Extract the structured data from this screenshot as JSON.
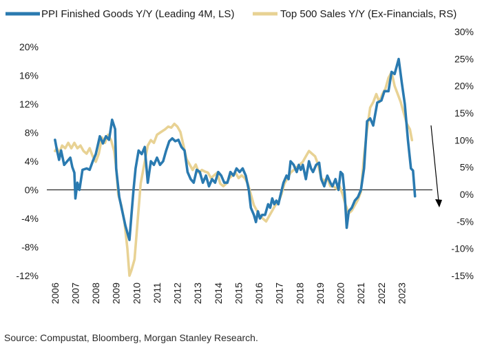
{
  "chart_data": {
    "type": "line",
    "title": "",
    "series": [
      {
        "name": "PPI Finished Goods Y/Y (Leading 4M, LS)",
        "axis": "left",
        "color": "#2a7ab0",
        "points": [
          [
            2006.0,
            7.0
          ],
          [
            2006.1,
            5.5
          ],
          [
            2006.2,
            4.2
          ],
          [
            2006.3,
            5.5
          ],
          [
            2006.45,
            3.5
          ],
          [
            2006.6,
            4.0
          ],
          [
            2006.75,
            4.5
          ],
          [
            2006.85,
            3.2
          ],
          [
            2006.95,
            2.4
          ],
          [
            2007.0,
            -1.2
          ],
          [
            2007.1,
            1.0
          ],
          [
            2007.2,
            0.0
          ],
          [
            2007.35,
            2.8
          ],
          [
            2007.55,
            3.0
          ],
          [
            2007.7,
            2.8
          ],
          [
            2007.85,
            4.0
          ],
          [
            2008.0,
            5.0
          ],
          [
            2008.2,
            7.5
          ],
          [
            2008.35,
            6.5
          ],
          [
            2008.5,
            7.5
          ],
          [
            2008.65,
            7.0
          ],
          [
            2008.8,
            9.8
          ],
          [
            2008.95,
            8.5
          ],
          [
            2009.0,
            3.0
          ],
          [
            2009.15,
            -1.0
          ],
          [
            2009.3,
            -3.0
          ],
          [
            2009.45,
            -5.0
          ],
          [
            2009.55,
            -6.0
          ],
          [
            2009.65,
            -7.0
          ],
          [
            2009.75,
            -3.5
          ],
          [
            2009.85,
            0.0
          ],
          [
            2009.95,
            3.0
          ],
          [
            2010.1,
            5.5
          ],
          [
            2010.25,
            5.0
          ],
          [
            2010.4,
            6.0
          ],
          [
            2010.55,
            1.0
          ],
          [
            2010.7,
            4.0
          ],
          [
            2010.85,
            3.5
          ],
          [
            2011.0,
            4.5
          ],
          [
            2011.15,
            3.5
          ],
          [
            2011.3,
            4.0
          ],
          [
            2011.45,
            5.5
          ],
          [
            2011.6,
            6.8
          ],
          [
            2011.75,
            7.2
          ],
          [
            2011.9,
            6.8
          ],
          [
            2012.05,
            7.0
          ],
          [
            2012.2,
            6.0
          ],
          [
            2012.35,
            5.5
          ],
          [
            2012.5,
            2.5
          ],
          [
            2012.65,
            1.5
          ],
          [
            2012.8,
            1.0
          ],
          [
            2012.95,
            2.8
          ],
          [
            2013.1,
            2.5
          ],
          [
            2013.25,
            1.0
          ],
          [
            2013.4,
            2.0
          ],
          [
            2013.55,
            0.5
          ],
          [
            2013.7,
            1.5
          ],
          [
            2013.85,
            1.0
          ],
          [
            2014.0,
            2.5
          ],
          [
            2014.15,
            2.0
          ],
          [
            2014.3,
            1.0
          ],
          [
            2014.45,
            1.0
          ],
          [
            2014.6,
            2.5
          ],
          [
            2014.75,
            2.0
          ],
          [
            2014.9,
            3.0
          ],
          [
            2015.05,
            2.5
          ],
          [
            2015.2,
            3.0
          ],
          [
            2015.35,
            2.0
          ],
          [
            2015.5,
            0.0
          ],
          [
            2015.6,
            -2.5
          ],
          [
            2015.75,
            -3.5
          ],
          [
            2015.85,
            -4.5
          ],
          [
            2015.95,
            -3.0
          ],
          [
            2016.05,
            -4.0
          ],
          [
            2016.15,
            -3.5
          ],
          [
            2016.3,
            -3.5
          ],
          [
            2016.45,
            -2.0
          ],
          [
            2016.55,
            -2.5
          ],
          [
            2016.65,
            -1.2
          ],
          [
            2016.75,
            -2.0
          ],
          [
            2016.85,
            -1.5
          ],
          [
            2016.95,
            -2.0
          ],
          [
            2017.05,
            -0.8
          ],
          [
            2017.2,
            1.0
          ],
          [
            2017.35,
            2.0
          ],
          [
            2017.45,
            1.5
          ],
          [
            2017.55,
            4.0
          ],
          [
            2017.7,
            3.5
          ],
          [
            2017.85,
            2.5
          ],
          [
            2017.95,
            3.5
          ],
          [
            2018.05,
            2.8
          ],
          [
            2018.15,
            3.5
          ],
          [
            2018.3,
            1.5
          ],
          [
            2018.45,
            4.0
          ],
          [
            2018.55,
            3.0
          ],
          [
            2018.65,
            2.5
          ],
          [
            2018.8,
            3.5
          ],
          [
            2018.95,
            3.8
          ],
          [
            2019.05,
            1.5
          ],
          [
            2019.2,
            0.5
          ],
          [
            2019.35,
            2.0
          ],
          [
            2019.5,
            1.0
          ],
          [
            2019.6,
            0.5
          ],
          [
            2019.75,
            1.5
          ],
          [
            2019.9,
            0.0
          ],
          [
            2020.0,
            2.5
          ],
          [
            2020.1,
            2.2
          ],
          [
            2020.2,
            -0.5
          ],
          [
            2020.3,
            -5.3
          ],
          [
            2020.4,
            -3.0
          ],
          [
            2020.55,
            -2.5
          ],
          [
            2020.7,
            -1.5
          ],
          [
            2020.85,
            -1.0
          ],
          [
            2021.0,
            0.0
          ],
          [
            2021.15,
            3.0
          ],
          [
            2021.3,
            9.6
          ],
          [
            2021.45,
            10.0
          ],
          [
            2021.6,
            9.0
          ],
          [
            2021.8,
            12.2
          ],
          [
            2022.0,
            12.5
          ],
          [
            2022.15,
            13.8
          ],
          [
            2022.35,
            13.8
          ],
          [
            2022.5,
            16.5
          ],
          [
            2022.65,
            16.2
          ],
          [
            2022.85,
            18.3
          ],
          [
            2023.0,
            15.0
          ],
          [
            2023.15,
            12.0
          ],
          [
            2023.3,
            7.0
          ],
          [
            2023.45,
            3.0
          ],
          [
            2023.55,
            2.7
          ],
          [
            2023.65,
            -0.9
          ]
        ]
      },
      {
        "name": "Top 500 Sales Y/Y (Ex-Financials, RS)",
        "axis": "right",
        "color": "#e8d294",
        "points": [
          [
            2006.0,
            8.0
          ],
          [
            2006.1,
            8.5
          ],
          [
            2006.2,
            7.5
          ],
          [
            2006.35,
            9.0
          ],
          [
            2006.5,
            8.5
          ],
          [
            2006.65,
            9.5
          ],
          [
            2006.8,
            8.5
          ],
          [
            2006.95,
            9.5
          ],
          [
            2007.1,
            8.5
          ],
          [
            2007.25,
            9.0
          ],
          [
            2007.4,
            8.0
          ],
          [
            2007.55,
            7.5
          ],
          [
            2007.7,
            8.5
          ],
          [
            2007.85,
            7.0
          ],
          [
            2008.0,
            6.0
          ],
          [
            2008.15,
            7.5
          ],
          [
            2008.3,
            10.5
          ],
          [
            2008.45,
            9.5
          ],
          [
            2008.6,
            11.0
          ],
          [
            2008.75,
            10.0
          ],
          [
            2008.9,
            8.0
          ],
          [
            2009.0,
            5.0
          ],
          [
            2009.1,
            0.0
          ],
          [
            2009.25,
            -2.0
          ],
          [
            2009.4,
            -5.0
          ],
          [
            2009.55,
            -10.0
          ],
          [
            2009.65,
            -15.0
          ],
          [
            2009.75,
            -14.0
          ],
          [
            2009.9,
            -12.0
          ],
          [
            2010.05,
            -5.0
          ],
          [
            2010.2,
            2.0
          ],
          [
            2010.35,
            5.0
          ],
          [
            2010.55,
            9.0
          ],
          [
            2010.7,
            10.0
          ],
          [
            2010.85,
            9.5
          ],
          [
            2011.0,
            11.0
          ],
          [
            2011.2,
            11.5
          ],
          [
            2011.4,
            12.0
          ],
          [
            2011.55,
            12.5
          ],
          [
            2011.7,
            12.3
          ],
          [
            2011.85,
            13.0
          ],
          [
            2012.0,
            12.5
          ],
          [
            2012.15,
            11.5
          ],
          [
            2012.3,
            9.0
          ],
          [
            2012.45,
            6.5
          ],
          [
            2012.6,
            5.5
          ],
          [
            2012.75,
            4.5
          ],
          [
            2012.9,
            5.5
          ],
          [
            2013.05,
            4.0
          ],
          [
            2013.2,
            4.5
          ],
          [
            2013.35,
            4.2
          ],
          [
            2013.5,
            4.0
          ],
          [
            2013.65,
            3.0
          ],
          [
            2013.8,
            3.5
          ],
          [
            2013.95,
            4.0
          ],
          [
            2014.1,
            2.0
          ],
          [
            2014.25,
            1.5
          ],
          [
            2014.4,
            2.0
          ],
          [
            2014.55,
            3.0
          ],
          [
            2014.7,
            3.5
          ],
          [
            2014.85,
            4.0
          ],
          [
            2015.0,
            3.0
          ],
          [
            2015.15,
            3.5
          ],
          [
            2015.3,
            3.0
          ],
          [
            2015.45,
            2.0
          ],
          [
            2015.6,
            0.0
          ],
          [
            2015.75,
            -2.0
          ],
          [
            2015.9,
            -3.0
          ],
          [
            2016.05,
            -4.0
          ],
          [
            2016.2,
            -4.5
          ],
          [
            2016.35,
            -5.0
          ],
          [
            2016.5,
            -4.0
          ],
          [
            2016.65,
            -3.0
          ],
          [
            2016.8,
            -2.0
          ],
          [
            2016.95,
            -1.5
          ],
          [
            2017.1,
            0.0
          ],
          [
            2017.25,
            2.0
          ],
          [
            2017.4,
            3.0
          ],
          [
            2017.55,
            4.0
          ],
          [
            2017.7,
            4.5
          ],
          [
            2017.85,
            5.0
          ],
          [
            2018.0,
            5.5
          ],
          [
            2018.15,
            6.0
          ],
          [
            2018.3,
            7.0
          ],
          [
            2018.45,
            8.0
          ],
          [
            2018.6,
            7.5
          ],
          [
            2018.75,
            7.0
          ],
          [
            2018.9,
            5.5
          ],
          [
            2019.05,
            3.0
          ],
          [
            2019.2,
            2.5
          ],
          [
            2019.35,
            3.0
          ],
          [
            2019.5,
            1.5
          ],
          [
            2019.65,
            1.5
          ],
          [
            2019.8,
            1.0
          ],
          [
            2019.95,
            1.5
          ],
          [
            2020.1,
            0.0
          ],
          [
            2020.25,
            -2.0
          ],
          [
            2020.4,
            -3.5
          ],
          [
            2020.55,
            -3.0
          ],
          [
            2020.7,
            -2.0
          ],
          [
            2020.85,
            -1.0
          ],
          [
            2021.0,
            0.5
          ],
          [
            2021.15,
            7.0
          ],
          [
            2021.3,
            12.0
          ],
          [
            2021.45,
            16.0
          ],
          [
            2021.6,
            17.0
          ],
          [
            2021.75,
            18.5
          ],
          [
            2021.9,
            17.0
          ],
          [
            2022.05,
            18.5
          ],
          [
            2022.2,
            19.5
          ],
          [
            2022.35,
            21.5
          ],
          [
            2022.5,
            22.5
          ],
          [
            2022.65,
            20.0
          ],
          [
            2022.8,
            18.5
          ],
          [
            2022.95,
            17.0
          ],
          [
            2023.1,
            15.0
          ],
          [
            2023.25,
            13.0
          ],
          [
            2023.4,
            12.0
          ],
          [
            2023.5,
            10.0
          ]
        ]
      }
    ],
    "x_ticks": [
      "2006",
      "2007",
      "2008",
      "2009",
      "2010",
      "2011",
      "2012",
      "2013",
      "2014",
      "2015",
      "2016",
      "2017",
      "2018",
      "2019",
      "2020",
      "2021",
      "2022",
      "2023"
    ],
    "y_left": {
      "min": -12,
      "max": 20,
      "step": 4,
      "tick_labels": [
        "-12%",
        "-8%",
        "-4%",
        "0%",
        "4%",
        "8%",
        "12%",
        "16%",
        "20%"
      ]
    },
    "y_right": {
      "min": -15,
      "max": 30,
      "step": 5,
      "tick_labels": [
        "-15%",
        "-10%",
        "-5%",
        "0%",
        "5%",
        "10%",
        "15%",
        "20%",
        "25%",
        "30%"
      ]
    },
    "xlim": [
      2005.6,
      2024.3
    ],
    "grid": false,
    "legend_position": "top",
    "annotation": "downward arrow near end of 2023"
  },
  "source": "Source: Compustat, Bloomberg, Morgan Stanley Research."
}
